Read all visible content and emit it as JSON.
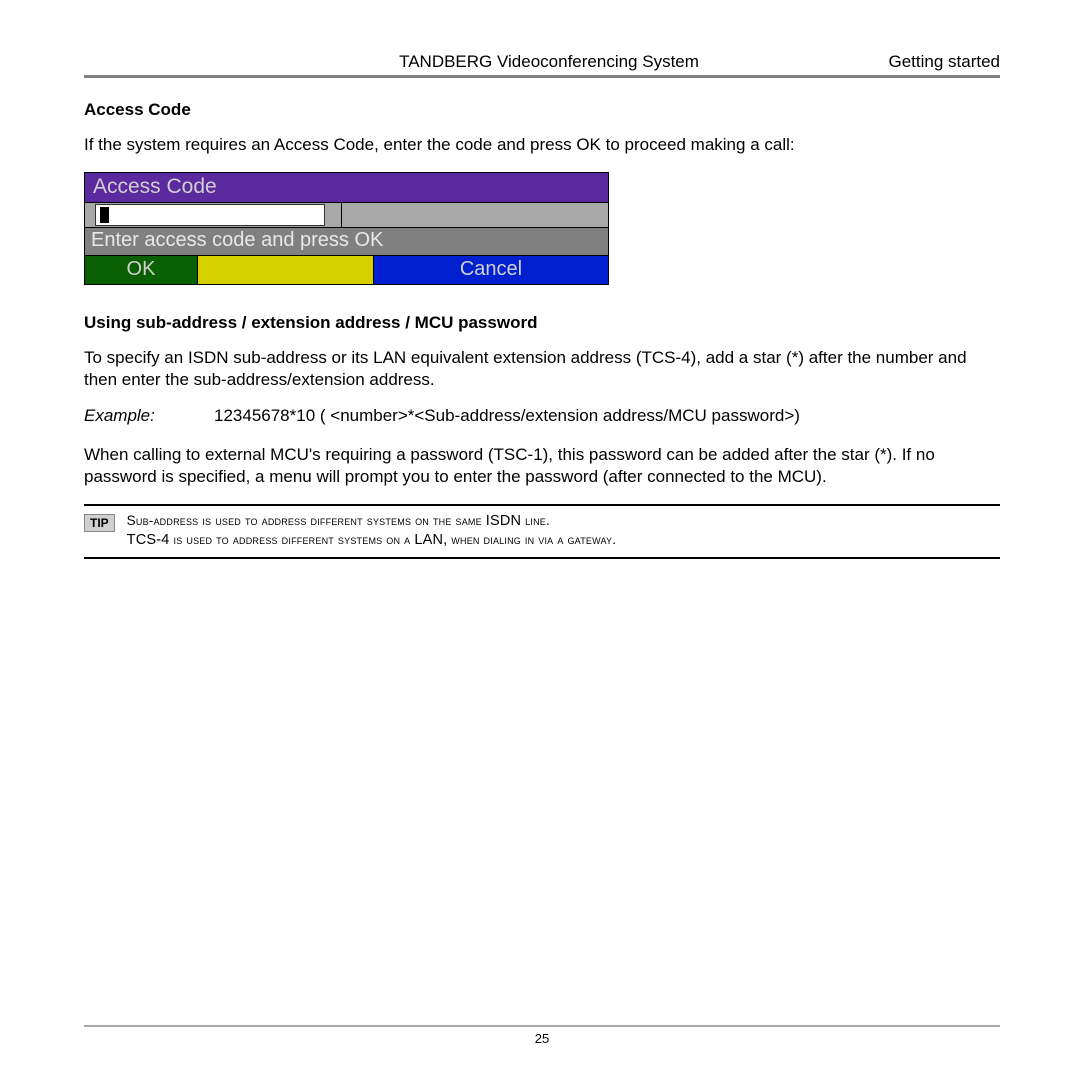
{
  "header": {
    "center": "TANDBERG Videoconferencing System",
    "right": "Getting started"
  },
  "section1": {
    "title": "Access Code",
    "intro": "If the system requires an Access Code, enter the code and press OK to proceed making a call:"
  },
  "dialog": {
    "title": "Access Code",
    "prompt": "Enter access code and press OK",
    "ok": "OK",
    "cancel": "Cancel",
    "colors": {
      "title_bg": "#5a2a9e",
      "prompt_bg": "#808080",
      "ok_bg": "#0a6000",
      "mid_bg": "#d6d000",
      "cancel_bg": "#0020d0"
    }
  },
  "section2": {
    "title": "Using sub-address / extension address / MCU password",
    "para1": "To specify an ISDN sub-address or its LAN equivalent extension address (TCS-4), add a star (*) after the number and then enter the sub-address/extension address.",
    "example_label": "Example:",
    "example_value": "12345678*10   ( <number>*<Sub-address/extension address/MCU password>)",
    "para2": "When calling to external MCU's requiring a password (TSC-1), this password can be added after the star (*). If no password is specified, a menu will prompt you to enter the password (after connected to the MCU)."
  },
  "tip": {
    "badge": "TIP",
    "line1_a": "Sub-address is used to address different systems on the same ",
    "line1_b": "ISDN",
    "line1_c": " line.",
    "line2_a": "TCS-4",
    "line2_b": " is used to address different systems on a ",
    "line2_c": "LAN,",
    "line2_d": " when dialing in via a gateway."
  },
  "footer": {
    "page": "25"
  }
}
